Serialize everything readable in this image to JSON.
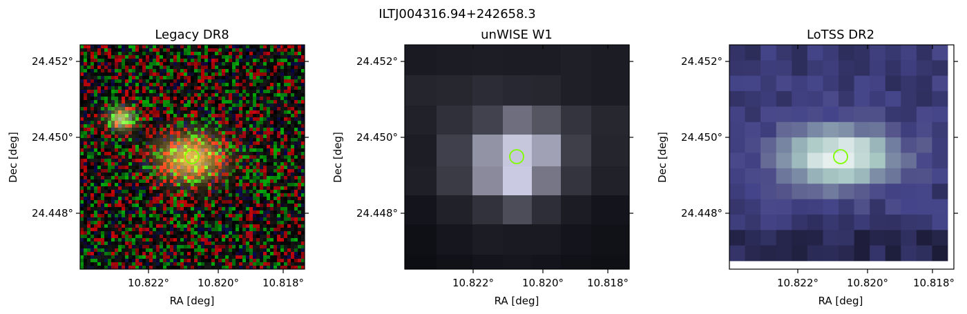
{
  "suptitle": "ILTJ004316.94+242658.3",
  "panels": [
    {
      "title": "Legacy DR8",
      "xlabel": "RA [deg]",
      "ylabel": "Dec [deg]",
      "xticks": [
        "10.822°",
        "10.820°",
        "10.818°"
      ],
      "yticks": [
        "24.452°",
        "24.450°",
        "24.448°"
      ],
      "image_kind": "optical-rgb-cutout"
    },
    {
      "title": "unWISE W1",
      "xlabel": "RA [deg]",
      "ylabel": "Dec [deg]",
      "xticks": [
        "10.822°",
        "10.820°",
        "10.818°"
      ],
      "yticks": [
        "24.452°",
        "24.450°",
        "24.448°"
      ],
      "image_kind": "infrared-grayscale-cutout"
    },
    {
      "title": "LoTSS DR2",
      "xlabel": "RA [deg]",
      "ylabel": "Dec [deg]",
      "xticks": [
        "10.822°",
        "10.820°",
        "10.818°"
      ],
      "yticks": [
        "24.452°",
        "24.450°",
        "24.448°"
      ],
      "image_kind": "radio-bone-cutout"
    }
  ],
  "source": {
    "ra_deg": 10.8206,
    "dec_deg": 24.4494,
    "marker": "circle",
    "marker_color": "#7fff00"
  },
  "colors": {
    "frame": "#000000",
    "marker": "#7fff00"
  }
}
